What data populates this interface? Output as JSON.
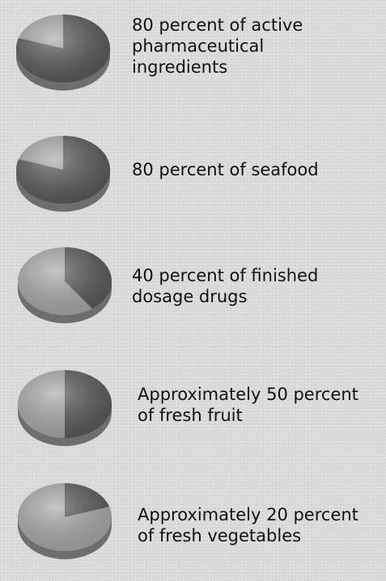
{
  "chart_data": {
    "type": "pie",
    "items": [
      {
        "label": "80 percent of active pharmaceutical ingredients",
        "display": "80 percent of active\npharmaceutical\ningredients",
        "value": 80
      },
      {
        "label": "80 percent of seafood",
        "display": "80 percent of seafood",
        "value": 80
      },
      {
        "label": "40 percent of finished dosage drugs",
        "display": "40 percent of finished\ndosage drugs",
        "value": 40
      },
      {
        "label": "Approximately 50 percent of fresh fruit",
        "display": "Approximately 50 percent\nof fresh fruit",
        "value": 50
      },
      {
        "label": "Approximately 20 percent of fresh vegetables",
        "display": "Approximately 20 percent\nof fresh vegetables",
        "value": 20
      }
    ]
  },
  "colors": {
    "filled_slice": "#585858",
    "remainder_slice": "#a9a9a9",
    "page_background": "#dcdcdc"
  }
}
